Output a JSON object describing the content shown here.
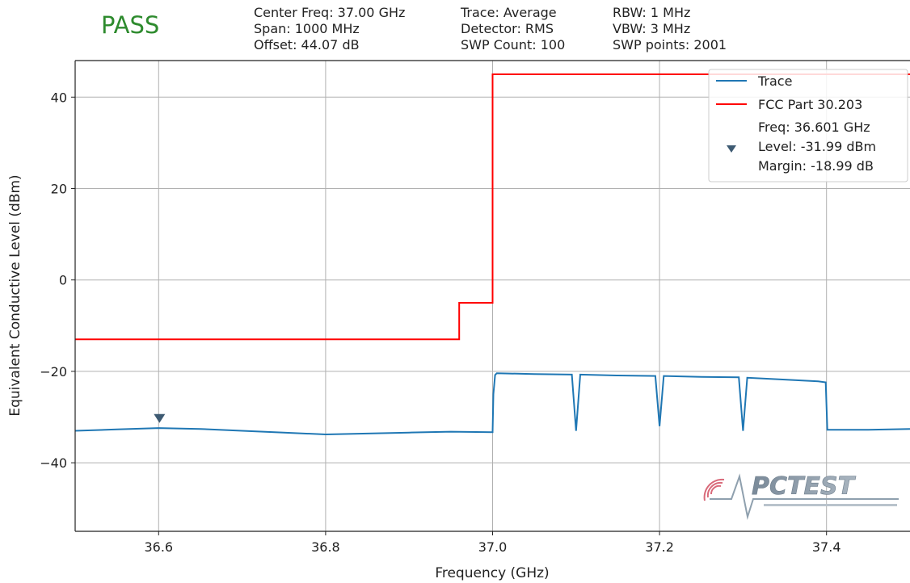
{
  "header": {
    "status": "PASS",
    "status_color": "#2e8b2e",
    "params": [
      [
        "Center Freq: 37.00 GHz",
        "Span: 1000 MHz",
        "Offset: 44.07 dB"
      ],
      [
        "Trace: Average",
        "Detector: RMS",
        "SWP Count: 100"
      ],
      [
        "RBW: 1 MHz",
        "VBW: 3 MHz",
        "SWP points: 2001"
      ]
    ]
  },
  "logo": {
    "text": "PCTEST"
  },
  "chart_data": {
    "type": "line",
    "xlabel": "Frequency (GHz)",
    "ylabel": "Equivalent Conductive Level (dBm)",
    "xlim": [
      36.5,
      37.5
    ],
    "ylim": [
      -55,
      48
    ],
    "xticks": [
      36.6,
      36.8,
      37.0,
      37.2,
      37.4
    ],
    "xtick_labels": [
      "36.6",
      "36.8",
      "37.0",
      "37.2",
      "37.4"
    ],
    "yticks": [
      40,
      20,
      0,
      -20,
      -40
    ],
    "ytick_labels": [
      "40",
      "20",
      "0",
      "−20",
      "−40"
    ],
    "grid": true,
    "legend_position": "top-right",
    "series": [
      {
        "name": "Trace",
        "color": "#1f77b4",
        "x": [
          36.5,
          36.55,
          36.6,
          36.65,
          36.7,
          36.75,
          36.8,
          36.85,
          36.9,
          36.95,
          37.0,
          37.001,
          37.003,
          37.005,
          37.05,
          37.095,
          37.1,
          37.105,
          37.15,
          37.195,
          37.2,
          37.205,
          37.25,
          37.295,
          37.3,
          37.305,
          37.35,
          37.39,
          37.399,
          37.401,
          37.45,
          37.5
        ],
        "y": [
          -33.0,
          -32.7,
          -32.4,
          -32.6,
          -33.0,
          -33.4,
          -33.8,
          -33.6,
          -33.4,
          -33.2,
          -33.3,
          -25.0,
          -20.8,
          -20.4,
          -20.6,
          -20.7,
          -33.0,
          -20.7,
          -20.9,
          -21.0,
          -32.0,
          -21.0,
          -21.2,
          -21.3,
          -33.0,
          -21.4,
          -21.8,
          -22.2,
          -22.4,
          -32.8,
          -32.8,
          -32.6
        ]
      },
      {
        "name": "FCC Part 30.203",
        "color": "#ff0000",
        "x": [
          36.5,
          36.96,
          36.96,
          37.0,
          37.0,
          37.5
        ],
        "y": [
          -13,
          -13,
          -5,
          -5,
          45,
          45
        ]
      }
    ],
    "marker": {
      "freq": 36.601,
      "level": -31.99,
      "legend_lines": [
        "Freq: 36.601 GHz",
        "Level: -31.99 dBm",
        "Margin: -18.99 dB"
      ],
      "color": "#3d5a72"
    }
  }
}
